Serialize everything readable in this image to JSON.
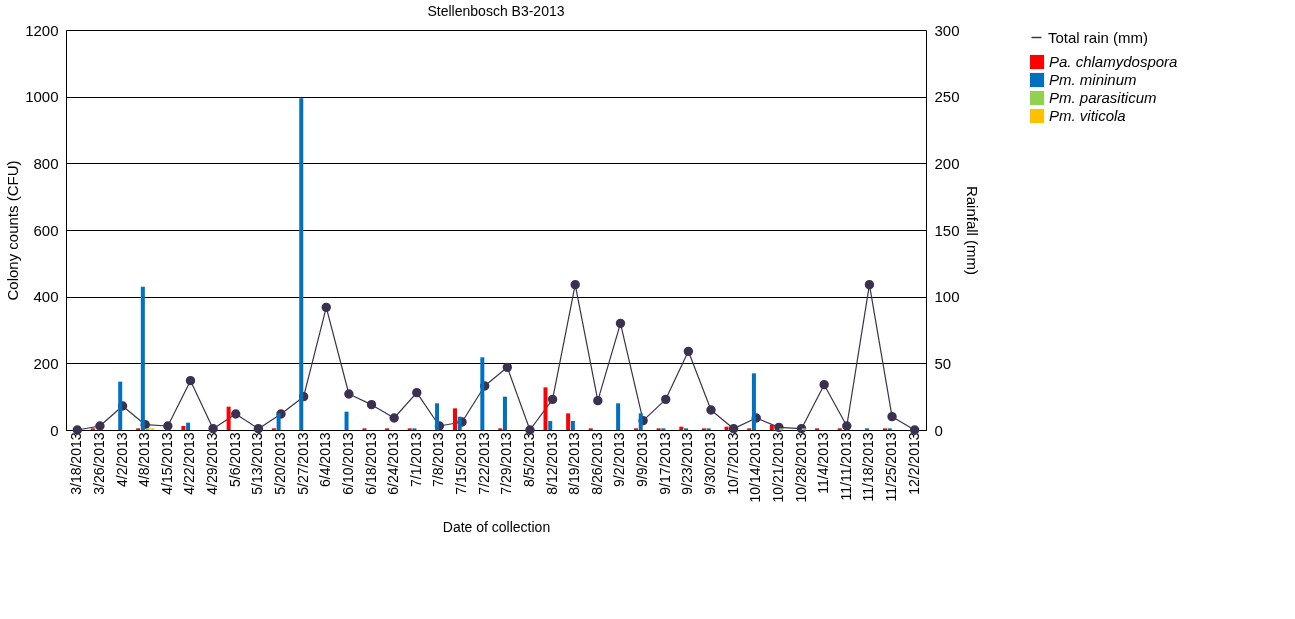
{
  "chart_data": {
    "type": "bar",
    "title": "Stellenbosch B3-2013",
    "xlabel": "Date of collection",
    "ylabel": "Colony counts (CFU)",
    "y2label": "Rainfall (mm)",
    "categories": [
      "3/18/2013",
      "3/26/2013",
      "4/2/2013",
      "4/8/2013",
      "4/15/2013",
      "4/22/2013",
      "4/29/2013",
      "5/6/2013",
      "5/13/2013",
      "5/20/2013",
      "5/27/2013",
      "6/4/2013",
      "6/10/2013",
      "6/18/2013",
      "6/24/2013",
      "7/1/2013",
      "7/8/2013",
      "7/15/2013",
      "7/22/2013",
      "7/29/2013",
      "8/5/2013",
      "8/12/2013",
      "8/19/2013",
      "8/26/2013",
      "9/2/2013",
      "9/9/2013",
      "9/17/2013",
      "9/23/2013",
      "9/30/2013",
      "10/7/2013",
      "10/14/2013",
      "10/21/2013",
      "10/28/2013",
      "11/4/2013",
      "11/11/2013",
      "11/18/2013",
      "11/25/2013",
      "12/2/2013"
    ],
    "series": [
      {
        "name": "Pa. chlamydospora",
        "color": "#ff0000",
        "values": [
          0,
          5,
          0,
          5,
          0,
          12,
          0,
          70,
          0,
          5,
          0,
          0,
          0,
          5,
          5,
          5,
          0,
          65,
          0,
          5,
          0,
          128,
          50,
          5,
          0,
          5,
          5,
          10,
          5,
          10,
          5,
          15,
          0,
          5,
          5,
          0,
          5,
          0
        ]
      },
      {
        "name": "Pm. mininum",
        "color": "#0070c0",
        "values": [
          0,
          0,
          145,
          430,
          0,
          22,
          0,
          0,
          0,
          50,
          995,
          0,
          55,
          0,
          0,
          5,
          80,
          40,
          218,
          100,
          0,
          27,
          27,
          0,
          80,
          50,
          5,
          5,
          5,
          0,
          170,
          0,
          0,
          0,
          0,
          5,
          5,
          0
        ]
      },
      {
        "name": "Pm. parasiticum",
        "color": "#92d050",
        "values": [
          0,
          0,
          0,
          5,
          0,
          0,
          0,
          0,
          0,
          0,
          0,
          0,
          0,
          0,
          0,
          0,
          0,
          0,
          0,
          0,
          0,
          0,
          0,
          0,
          0,
          0,
          0,
          0,
          0,
          0,
          0,
          5,
          5,
          0,
          0,
          0,
          0,
          0
        ]
      },
      {
        "name": "Pm. viticola",
        "color": "#ffc000",
        "values": [
          0,
          0,
          0,
          5,
          0,
          0,
          0,
          0,
          0,
          0,
          0,
          0,
          0,
          0,
          0,
          0,
          0,
          0,
          0,
          0,
          0,
          0,
          0,
          0,
          0,
          0,
          0,
          0,
          0,
          0,
          0,
          0,
          0,
          0,
          0,
          0,
          0,
          0
        ]
      },
      {
        "name": "Total rain (mm)",
        "type": "line",
        "axis": "y2",
        "marker": "circle",
        "color": "#3c3150",
        "values": [
          0,
          3,
          18,
          4,
          3,
          37,
          1,
          12,
          1,
          12,
          25,
          92,
          27,
          19,
          9,
          28,
          3,
          6,
          33,
          47,
          0,
          23,
          109,
          22,
          80,
          7,
          23,
          59,
          15,
          1,
          9,
          2,
          1,
          34,
          3,
          109,
          10,
          0
        ]
      }
    ],
    "ylim": [
      0,
      1200
    ],
    "yticks": [
      0,
      200,
      400,
      600,
      800,
      {
        "value": 1000,
        "label": "1000"
      },
      {
        "value": 1200,
        "label": "1200"
      }
    ],
    "y2lim": [
      0,
      300
    ],
    "y2ticks": [
      0,
      50,
      100,
      150,
      200,
      250,
      300
    ],
    "grid": "y",
    "legend": "right"
  }
}
